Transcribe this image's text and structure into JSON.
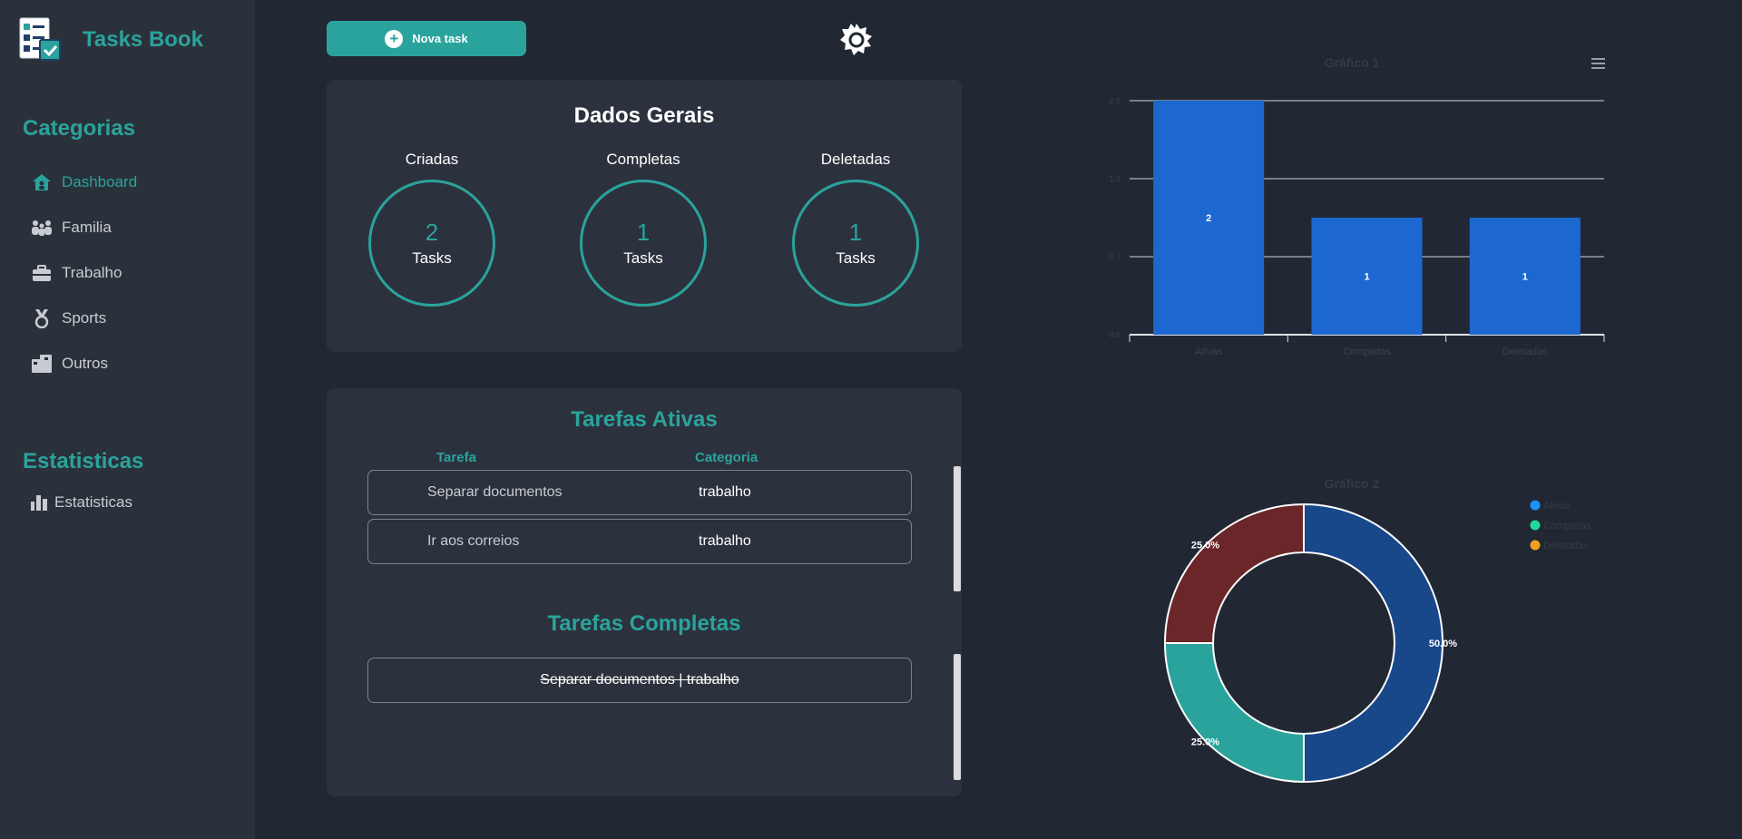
{
  "app": {
    "title": "Tasks Book"
  },
  "sidebar": {
    "categories_title": "Categorias",
    "items": [
      {
        "label": "Dashboard",
        "icon": "house-icon",
        "active": true
      },
      {
        "label": "Familia",
        "icon": "family-icon",
        "active": false
      },
      {
        "label": "Trabalho",
        "icon": "briefcase-icon",
        "active": false
      },
      {
        "label": "Sports",
        "icon": "medal-icon",
        "active": false
      },
      {
        "label": "Outros",
        "icon": "boxes-icon",
        "active": false
      }
    ],
    "stats_title": "Estatisticas",
    "stats_items": [
      {
        "label": "Estatisticas",
        "icon": "bar-chart-icon"
      }
    ]
  },
  "toolbar": {
    "new_task_label": "Nova task",
    "theme_icon": "sun-icon"
  },
  "general": {
    "title": "Dados Gerais",
    "stats": [
      {
        "label": "Criadas",
        "value": "2",
        "unit": "Tasks"
      },
      {
        "label": "Completas",
        "value": "1",
        "unit": "Tasks"
      },
      {
        "label": "Deletadas",
        "value": "1",
        "unit": "Tasks"
      }
    ]
  },
  "tasks": {
    "active_title": "Tarefas Ativas",
    "col_task": "Tarefa",
    "col_category": "Categoria",
    "active": [
      {
        "name": "Separar documentos",
        "category": "trabalho"
      },
      {
        "name": "Ir aos correios",
        "category": "trabalho"
      }
    ],
    "completed_title": "Tarefas Completas",
    "completed": [
      {
        "text": "Separar documentos | trabalho"
      }
    ]
  },
  "colors": {
    "accent": "#2aa39c",
    "bar": "#1c68d0",
    "pie_ativas": "#18478a",
    "pie_completas": "#2aa39c",
    "pie_deletadas": "#6b2629",
    "legend_ativas": "#1e90ff",
    "legend_completas": "#21d99a",
    "legend_deletadas": "#f0a020"
  },
  "chart_data": [
    {
      "type": "bar",
      "title": "Gráfico 1",
      "categories": [
        "Ativas",
        "Completas",
        "Deletadas"
      ],
      "values": [
        2,
        1,
        1
      ],
      "data_labels": [
        "2",
        "1",
        "1"
      ],
      "yticks": [
        "0.0",
        "0.7",
        "1.3",
        "2.0"
      ],
      "ylim": [
        0,
        2
      ],
      "grid": true,
      "menu_icon": "hamburger-icon"
    },
    {
      "type": "pie",
      "title": "Gráfico 2",
      "donut": true,
      "labels": [
        "Ativas",
        "Completas",
        "Deletadas"
      ],
      "values": [
        50,
        25,
        25
      ],
      "data_labels": [
        "50.0%",
        "25.0%",
        "25.0%"
      ],
      "legend_position": "top-right"
    }
  ]
}
